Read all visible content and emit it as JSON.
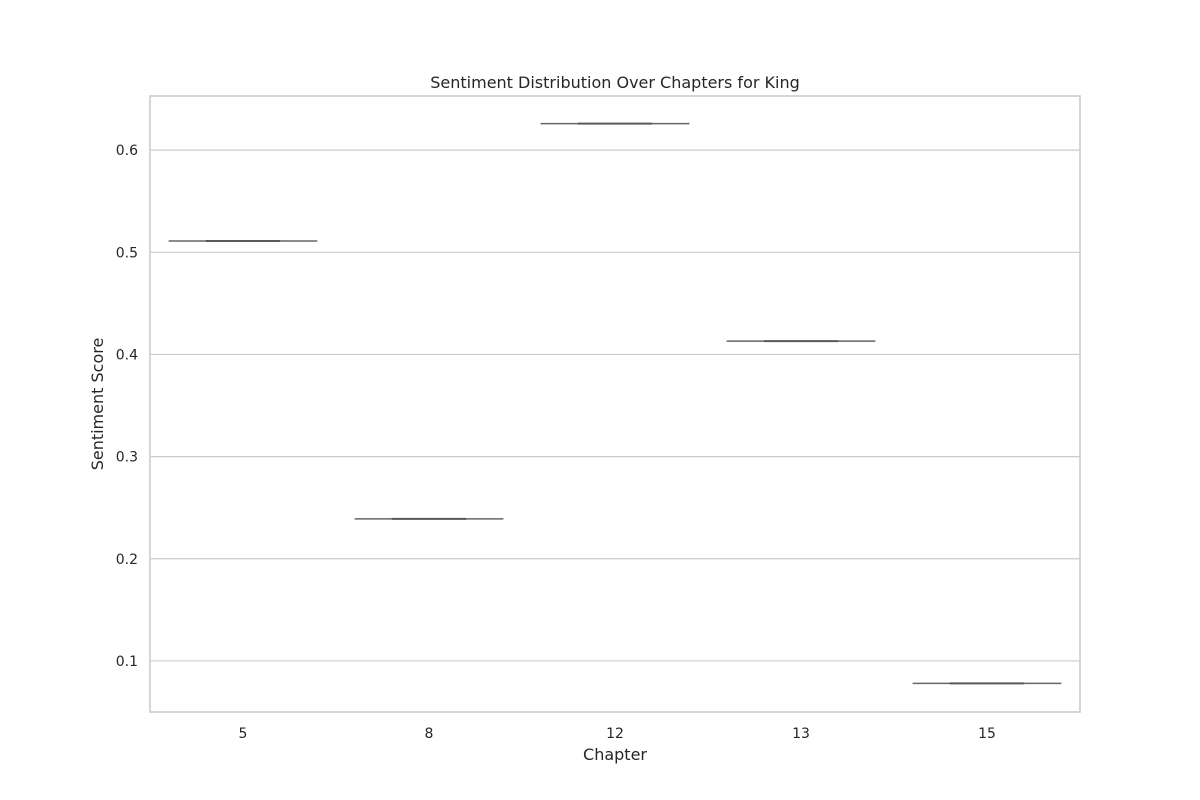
{
  "chart_data": {
    "type": "box",
    "title": "Sentiment Distribution Over Chapters for King",
    "xlabel": "Chapter",
    "ylabel": "Sentiment Score",
    "categories": [
      "5",
      "8",
      "12",
      "13",
      "15"
    ],
    "values": [
      0.511,
      0.239,
      0.626,
      0.413,
      0.078
    ],
    "ylim": [
      0.05,
      0.653
    ],
    "yticks": [
      0.1,
      0.2,
      0.3,
      0.4,
      0.5,
      0.6
    ],
    "ytick_labels": [
      "0.1",
      "0.2",
      "0.3",
      "0.4",
      "0.5",
      "0.6"
    ],
    "grid": true,
    "grid_axis": "y",
    "legend": false,
    "colors": {
      "grid": "#cccccc",
      "frame": "#cccccc",
      "box": "#666666",
      "text": "#262626"
    }
  }
}
